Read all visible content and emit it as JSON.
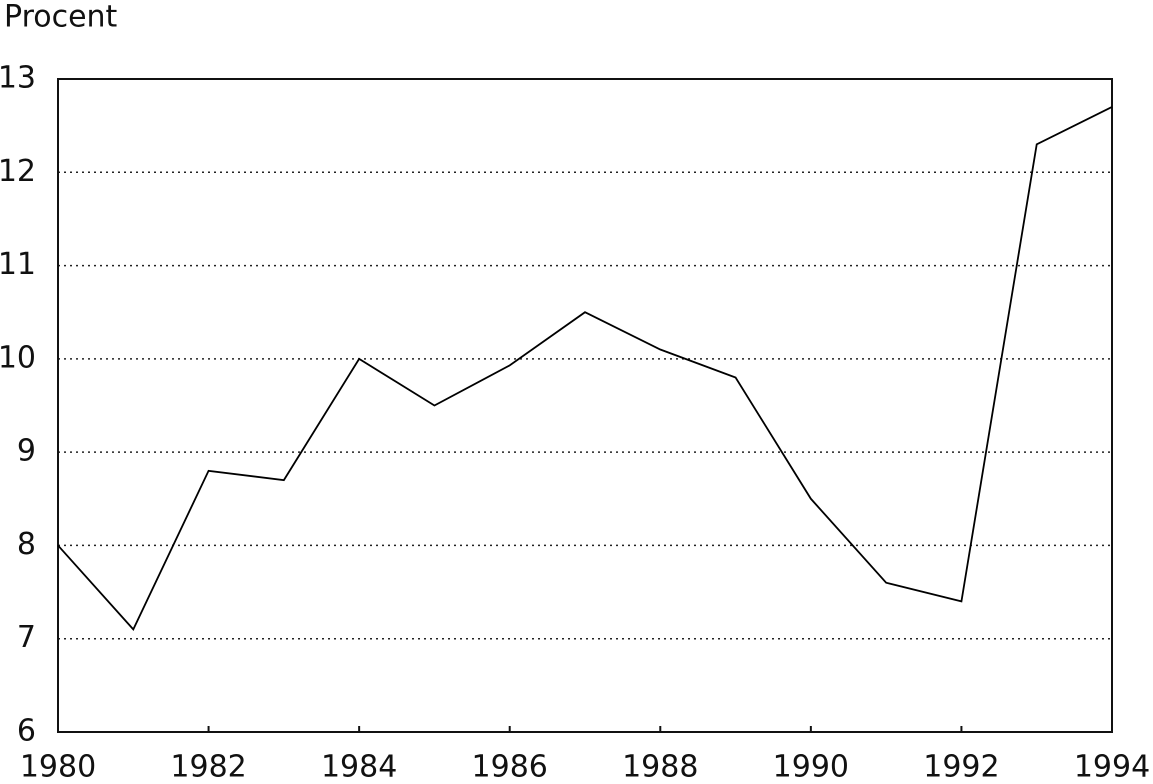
{
  "chart_data": {
    "type": "line",
    "y_label": "Procent",
    "x": [
      1980,
      1981,
      1982,
      1983,
      1984,
      1985,
      1986,
      1987,
      1988,
      1989,
      1990,
      1991,
      1992,
      1993,
      1994
    ],
    "series": [
      {
        "color": "#000000",
        "values": [
          8.0,
          7.1,
          8.8,
          8.7,
          10.0,
          9.5,
          9.93,
          10.5,
          10.1,
          9.8,
          8.5,
          7.6,
          7.4,
          12.3,
          12.7
        ]
      }
    ],
    "xlim": [
      1980,
      1994
    ],
    "xticks": [
      1980,
      1982,
      1984,
      1986,
      1988,
      1990,
      1992,
      1994
    ],
    "ylim": [
      6,
      13
    ],
    "yticks": [
      6,
      7,
      8,
      9,
      10,
      11,
      12,
      13
    ],
    "grid": true
  }
}
